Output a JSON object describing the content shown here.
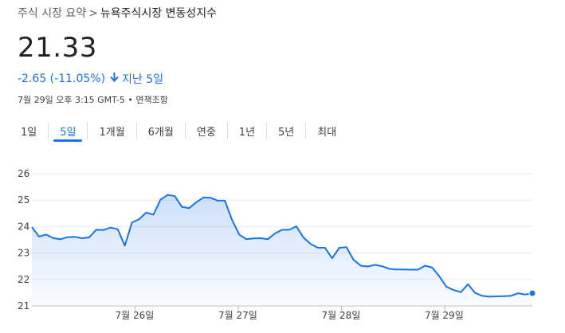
{
  "breadcrumb": {
    "root": "주식 시장 요약",
    "separator": ">",
    "current": "뉴욕주식시장 변동성지수"
  },
  "price": "21.33",
  "change": {
    "text": "-2.65 (-11.05%)",
    "period": "지난 5일",
    "color": "#1a73e8"
  },
  "timestamp": "7월 29일 오후 3:15 GMT-5 • 면책조항",
  "tabs": [
    {
      "label": "1일",
      "active": false
    },
    {
      "label": "5일",
      "active": true
    },
    {
      "label": "1개월",
      "active": false
    },
    {
      "label": "6개월",
      "active": false
    },
    {
      "label": "연중",
      "active": false
    },
    {
      "label": "1년",
      "active": false
    },
    {
      "label": "5년",
      "active": false
    },
    {
      "label": "최대",
      "active": false
    }
  ],
  "chart_data": {
    "type": "area",
    "ylim": [
      21,
      26
    ],
    "yticks": [
      "21",
      "22",
      "23",
      "24",
      "25",
      "26"
    ],
    "xticks": [
      "7월 26일",
      "7월 27일",
      "7월 28일",
      "7월 29일"
    ],
    "line_color": "#1a73e8",
    "values": [
      23.98,
      23.62,
      23.7,
      23.56,
      23.52,
      23.6,
      23.61,
      23.56,
      23.59,
      23.88,
      23.87,
      23.96,
      23.9,
      23.28,
      24.15,
      24.28,
      24.53,
      24.45,
      25.02,
      25.2,
      25.15,
      24.74,
      24.7,
      24.92,
      25.1,
      25.09,
      24.98,
      24.98,
      24.25,
      23.7,
      23.52,
      23.55,
      23.56,
      23.52,
      23.74,
      23.88,
      23.88,
      24.01,
      23.58,
      23.34,
      23.2,
      23.2,
      22.8,
      23.2,
      23.22,
      22.74,
      22.52,
      22.49,
      22.55,
      22.5,
      22.4,
      22.38,
      22.38,
      22.37,
      22.37,
      22.52,
      22.45,
      22.11,
      21.72,
      21.6,
      21.52,
      21.82,
      21.49,
      21.38,
      21.35,
      21.36,
      21.37,
      21.38,
      21.48,
      21.43,
      21.48
    ],
    "end_marker": true
  }
}
